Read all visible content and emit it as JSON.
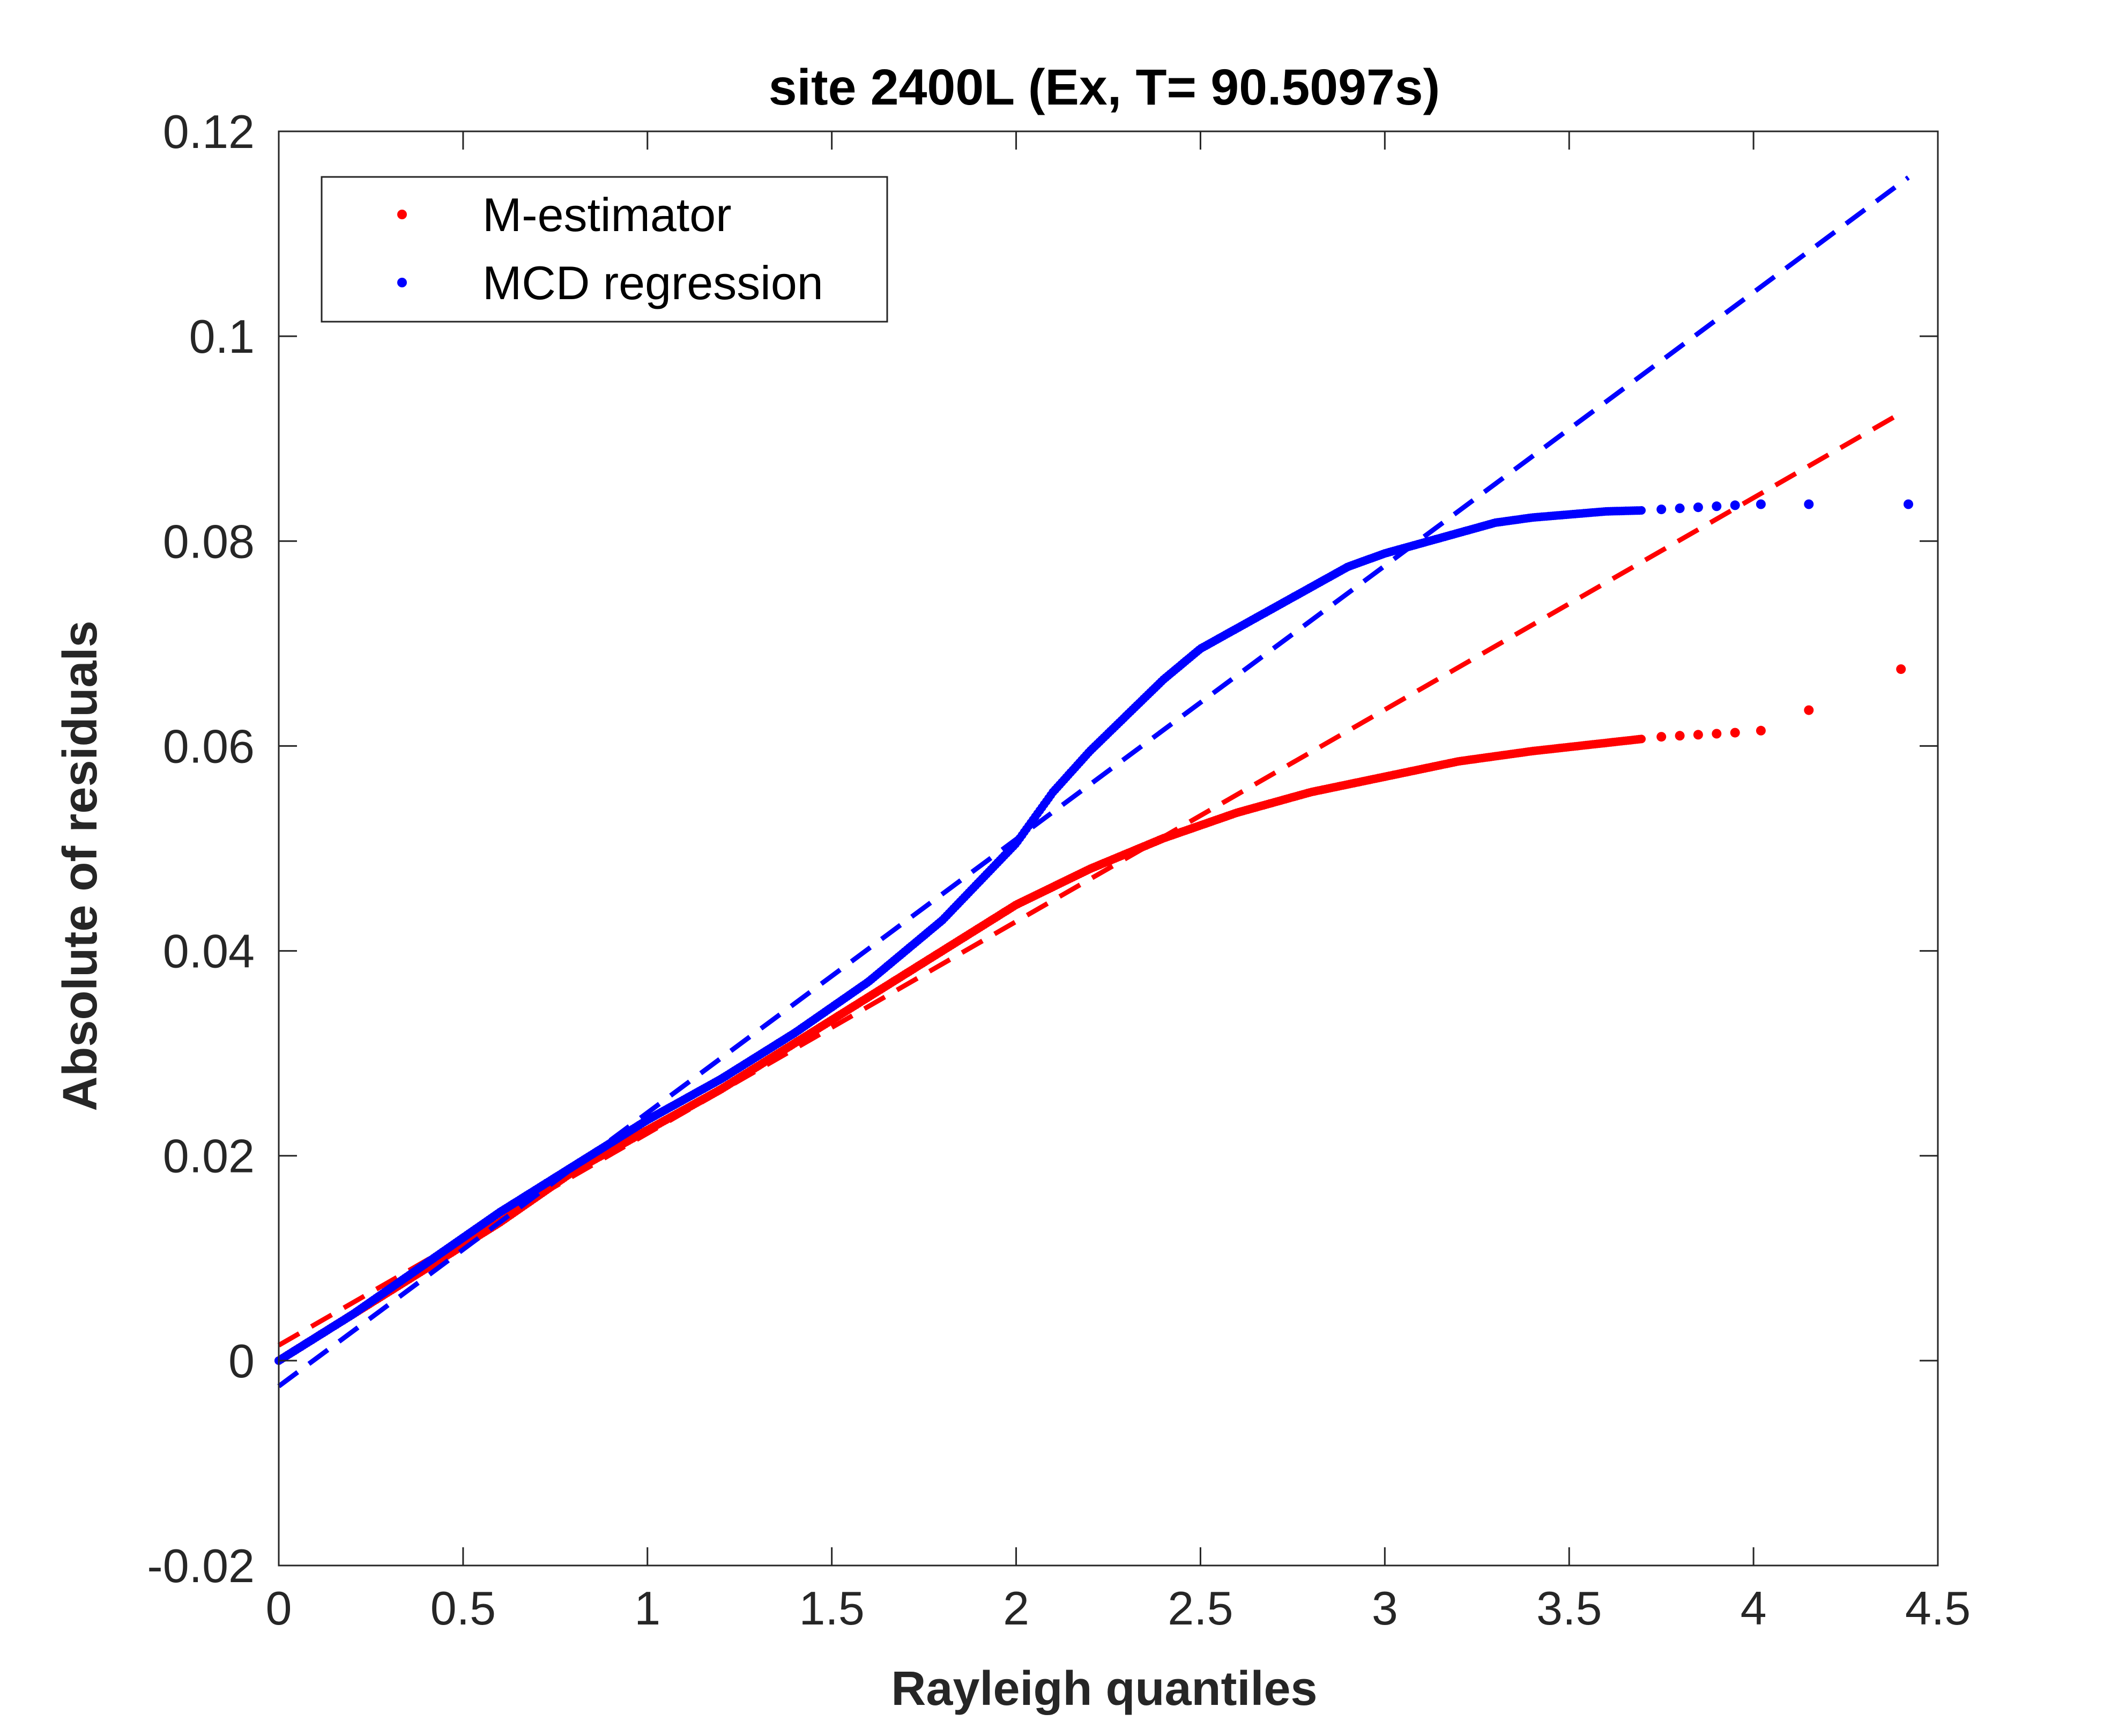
{
  "chart_data": {
    "type": "scatter",
    "title": "site 2400L (Ex, T= 90.5097s)",
    "xlabel": "Rayleigh quantiles",
    "ylabel": "Absolute of residuals",
    "xlim": [
      0,
      4.5
    ],
    "ylim": [
      -0.02,
      0.12
    ],
    "xticks": [
      0,
      0.5,
      1,
      1.5,
      2,
      2.5,
      3,
      3.5,
      4,
      4.5
    ],
    "xtick_labels": [
      "0",
      "0.5",
      "1",
      "1.5",
      "2",
      "2.5",
      "3",
      "3.5",
      "4",
      "4.5"
    ],
    "yticks": [
      -0.02,
      0,
      0.02,
      0.04,
      0.06,
      0.08,
      0.1,
      0.12
    ],
    "ytick_labels": [
      "-0.02",
      "0",
      "0.02",
      "0.04",
      "0.06",
      "0.08",
      "0.1",
      "0.12"
    ],
    "grid": false,
    "legend_position": "top-left",
    "series": [
      {
        "name": "M-estimator",
        "color": "#ff0000",
        "marker": "dot",
        "curve": [
          [
            0,
            0
          ],
          [
            0.2,
            0.0045
          ],
          [
            0.4,
            0.009
          ],
          [
            0.6,
            0.0135
          ],
          [
            0.8,
            0.0185
          ],
          [
            1.0,
            0.0225
          ],
          [
            1.2,
            0.0265
          ],
          [
            1.4,
            0.031
          ],
          [
            1.6,
            0.0355
          ],
          [
            1.8,
            0.04
          ],
          [
            2.0,
            0.0445
          ],
          [
            2.2,
            0.048
          ],
          [
            2.4,
            0.051
          ],
          [
            2.6,
            0.0535
          ],
          [
            2.8,
            0.0555
          ],
          [
            3.0,
            0.057
          ],
          [
            3.2,
            0.0585
          ],
          [
            3.4,
            0.0595
          ],
          [
            3.6,
            0.0603
          ],
          [
            3.7,
            0.0607
          ]
        ],
        "tail_points": [
          [
            3.75,
            0.0609
          ],
          [
            3.8,
            0.061
          ],
          [
            3.85,
            0.0611
          ],
          [
            3.9,
            0.0612
          ],
          [
            3.95,
            0.0613
          ],
          [
            4.02,
            0.0615
          ],
          [
            4.15,
            0.0635
          ],
          [
            4.4,
            0.0675
          ]
        ],
        "fit_line": [
          [
            0,
            0.0015
          ],
          [
            4.4,
            0.0925
          ]
        ]
      },
      {
        "name": "MCD regression",
        "color": "#0000ff",
        "marker": "dot",
        "curve": [
          [
            0,
            0
          ],
          [
            0.2,
            0.0045
          ],
          [
            0.4,
            0.0095
          ],
          [
            0.6,
            0.0145
          ],
          [
            0.8,
            0.019
          ],
          [
            1.0,
            0.0235
          ],
          [
            1.2,
            0.0275
          ],
          [
            1.4,
            0.032
          ],
          [
            1.6,
            0.037
          ],
          [
            1.8,
            0.043
          ],
          [
            2.0,
            0.0505
          ],
          [
            2.1,
            0.0555
          ],
          [
            2.2,
            0.0595
          ],
          [
            2.3,
            0.063
          ],
          [
            2.4,
            0.0665
          ],
          [
            2.5,
            0.0695
          ],
          [
            2.6,
            0.0715
          ],
          [
            2.7,
            0.0735
          ],
          [
            2.8,
            0.0755
          ],
          [
            2.9,
            0.0775
          ],
          [
            3.0,
            0.0788
          ],
          [
            3.1,
            0.0798
          ],
          [
            3.2,
            0.0808
          ],
          [
            3.3,
            0.0818
          ],
          [
            3.4,
            0.0823
          ],
          [
            3.5,
            0.0826
          ],
          [
            3.6,
            0.0829
          ],
          [
            3.7,
            0.083
          ]
        ],
        "tail_points": [
          [
            3.75,
            0.0831
          ],
          [
            3.8,
            0.0832
          ],
          [
            3.85,
            0.0833
          ],
          [
            3.9,
            0.0834
          ],
          [
            3.95,
            0.0835
          ],
          [
            4.02,
            0.0836
          ],
          [
            4.15,
            0.0836
          ],
          [
            4.42,
            0.0836
          ]
        ],
        "fit_line": [
          [
            0,
            -0.0025
          ],
          [
            4.42,
            0.1155
          ]
        ]
      }
    ]
  }
}
